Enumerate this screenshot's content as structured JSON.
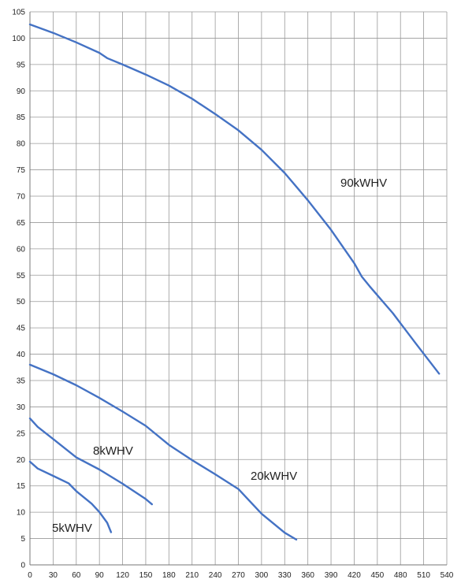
{
  "chart_data": {
    "type": "line",
    "title": "",
    "xlabel": "",
    "ylabel": "",
    "xlim": [
      0,
      540
    ],
    "ylim": [
      0,
      105
    ],
    "x_ticks": [
      0,
      30,
      60,
      90,
      120,
      150,
      180,
      210,
      240,
      270,
      300,
      330,
      360,
      390,
      420,
      450,
      480,
      510,
      540
    ],
    "y_ticks": [
      0,
      5,
      10,
      15,
      20,
      25,
      30,
      35,
      40,
      45,
      50,
      55,
      60,
      65,
      70,
      75,
      80,
      85,
      90,
      95,
      100,
      105
    ],
    "grid": true,
    "color": "#4472c4",
    "series": [
      {
        "name": "90kWHV",
        "x": [
          0,
          30,
          60,
          90,
          100,
          120,
          150,
          180,
          210,
          240,
          270,
          300,
          330,
          360,
          390,
          420,
          430,
          440,
          450,
          470,
          500,
          530
        ],
        "y": [
          102.6,
          101,
          99.2,
          97.2,
          96.2,
          95,
          93.1,
          91,
          88.5,
          85.6,
          82.5,
          78.8,
          74.4,
          69.2,
          63.6,
          57.3,
          54.7,
          52.9,
          51.2,
          47.8,
          42,
          36.3
        ]
      },
      {
        "name": "20kWHV",
        "x": [
          0,
          30,
          60,
          90,
          120,
          150,
          180,
          210,
          240,
          270,
          300,
          330,
          345
        ],
        "y": [
          38,
          36.2,
          34.1,
          31.7,
          29.1,
          26.4,
          22.8,
          19.9,
          17.2,
          14.4,
          9.7,
          6.1,
          4.8
        ]
      },
      {
        "name": "8kWHV",
        "x": [
          0,
          10,
          30,
          60,
          90,
          120,
          150,
          158
        ],
        "y": [
          27.8,
          26.2,
          23.9,
          20.4,
          18.1,
          15.4,
          12.5,
          11.5
        ]
      },
      {
        "name": "5kWHV",
        "x": [
          0,
          10,
          30,
          50,
          60,
          80,
          90,
          100,
          105
        ],
        "y": [
          19.6,
          18.3,
          16.9,
          15.5,
          14,
          11.6,
          10,
          8,
          6.2
        ]
      }
    ]
  }
}
